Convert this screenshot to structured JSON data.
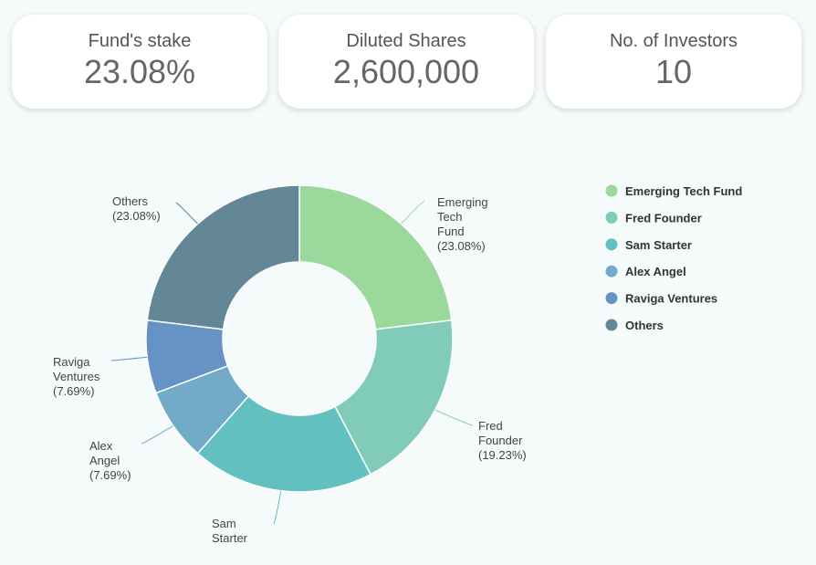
{
  "cards": [
    {
      "label": "Fund's stake",
      "value": "23.08%"
    },
    {
      "label": "Diluted Shares",
      "value": "2,600,000"
    },
    {
      "label": "No. of Investors",
      "value": "10"
    }
  ],
  "chart_data": {
    "type": "pie",
    "donut": true,
    "legend_position": "right",
    "categories": [
      "Emerging Tech Fund",
      "Fred Founder",
      "Sam Starter",
      "Alex Angel",
      "Raviga Ventures",
      "Others"
    ],
    "values": [
      23.08,
      19.23,
      19.23,
      7.69,
      7.69,
      23.08
    ],
    "labels": [
      [
        "Emerging",
        "Tech",
        "Fund",
        "(23.08%)"
      ],
      [
        "Fred",
        "Founder",
        "(19.23%)"
      ],
      [
        "Sam",
        "Starter"
      ],
      [
        "Alex",
        "Angel",
        "(7.69%)"
      ],
      [
        "Raviga",
        "Ventures",
        "(7.69%)"
      ],
      [
        "Others",
        "(23.08%)"
      ]
    ],
    "colors": [
      "#9bd89c",
      "#80ccb8",
      "#62c1c0",
      "#72abc8",
      "#6493c4",
      "#648797"
    ]
  }
}
